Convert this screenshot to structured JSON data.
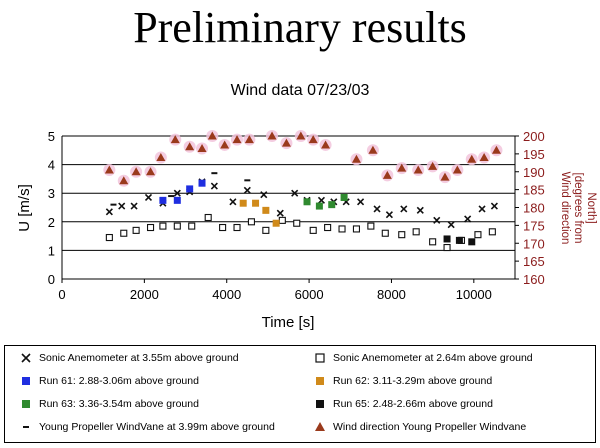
{
  "slide": {
    "title": "Preliminary results"
  },
  "colors": {
    "sonic_355": "#111111",
    "sonic_264": "#111111",
    "run61": "#1f2ee0",
    "run62": "#d08a1a",
    "run63": "#2f8a2f",
    "run65": "#111111",
    "propeller_speed": "#111111",
    "wind_direction": "#9a3a1c",
    "wind_direction_halo": "#f2c4dc",
    "right_axis_text": "#8b1c1c",
    "grid": "#000000"
  },
  "chart_data": {
    "type": "scatter",
    "title": "Wind data 07/23/03",
    "xlabel": "Time [s]",
    "ylabel": "U [m/s]",
    "y2label": "Wind direction [degrees from North]",
    "y2label_lines": [
      "Wind direction",
      "[degrees from",
      "North]"
    ],
    "xlim": [
      0,
      11000
    ],
    "ylim": [
      0,
      5
    ],
    "y2lim": [
      160,
      200
    ],
    "xticks": [
      "0",
      "2000",
      "4000",
      "6000",
      "8000",
      "10000"
    ],
    "yticks": [
      "0",
      "1",
      "2",
      "3",
      "4",
      "5"
    ],
    "y2ticks": [
      "160",
      "165",
      "170",
      "175",
      "180",
      "185",
      "190",
      "195",
      "200"
    ],
    "grid": "horizontal",
    "legend_position": "bottom",
    "series": [
      {
        "name": "Sonic Anemometer at 3.55m above ground",
        "marker": "x",
        "color": "sonic_355",
        "axis": "left",
        "x": [
          1150,
          1450,
          1750,
          2100,
          2450,
          2800,
          3100,
          3400,
          3700,
          4150,
          4500,
          4900,
          5300,
          5650,
          5950,
          6300,
          6600,
          6900,
          7250,
          7650,
          7950,
          8300,
          8700,
          9100,
          9450,
          9850,
          10200,
          10500
        ],
        "y": [
          2.35,
          2.55,
          2.55,
          2.85,
          2.65,
          3.0,
          3.05,
          3.4,
          3.25,
          2.7,
          3.1,
          2.95,
          2.3,
          3.0,
          2.75,
          2.75,
          2.7,
          2.7,
          2.7,
          2.45,
          2.25,
          2.45,
          2.4,
          2.05,
          1.9,
          2.1,
          2.45,
          2.55
        ]
      },
      {
        "name": "Sonic Anemometer at 2.64m above ground",
        "marker": "open-square",
        "color": "sonic_264",
        "axis": "left",
        "x": [
          1150,
          1500,
          1800,
          2150,
          2450,
          2800,
          3150,
          3550,
          3900,
          4250,
          4600,
          4950,
          5350,
          5700,
          6100,
          6450,
          6800,
          7150,
          7500,
          7850,
          8250,
          8600,
          9000,
          9350,
          9700,
          10100,
          10450
        ],
        "y": [
          1.45,
          1.6,
          1.7,
          1.8,
          1.85,
          1.85,
          1.85,
          2.15,
          1.8,
          1.8,
          2.0,
          1.7,
          2.05,
          1.95,
          1.7,
          1.8,
          1.75,
          1.75,
          1.85,
          1.6,
          1.55,
          1.65,
          1.3,
          1.1,
          1.35,
          1.55,
          1.65
        ]
      },
      {
        "name": "Run 61: 2.88-3.06m above ground",
        "marker": "filled-square",
        "color": "run61",
        "axis": "left",
        "x": [
          2450,
          2800,
          3100,
          3400
        ],
        "y": [
          2.75,
          2.75,
          3.15,
          3.35
        ]
      },
      {
        "name": "Run 62: 3.11-3.29m above ground",
        "marker": "filled-square",
        "color": "run62",
        "axis": "left",
        "x": [
          4400,
          4700,
          4950,
          5200
        ],
        "y": [
          2.65,
          2.65,
          2.4,
          1.95
        ]
      },
      {
        "name": "Run 63: 3.36-3.54m above ground",
        "marker": "filled-square",
        "color": "run63",
        "axis": "left",
        "x": [
          5950,
          6250,
          6550,
          6850
        ],
        "y": [
          2.7,
          2.55,
          2.6,
          2.85
        ]
      },
      {
        "name": "Run 65: 2.48-2.66m above ground",
        "marker": "filled-square",
        "color": "run65",
        "axis": "left",
        "x": [
          9350,
          9650,
          9950
        ],
        "y": [
          1.4,
          1.35,
          1.3
        ]
      },
      {
        "name": "Young Propeller WindVane at 3.99m above ground",
        "marker": "dash",
        "color": "propeller_speed",
        "axis": "left",
        "x": [
          1250,
          2650,
          3700,
          4500
        ],
        "y": [
          2.6,
          2.9,
          3.7,
          3.45
        ]
      },
      {
        "name": "Wind direction Young Propeller Windvane",
        "marker": "triangle",
        "color": "wind_direction",
        "axis": "right",
        "x": [
          1150,
          1500,
          1800,
          2150,
          2400,
          2750,
          3100,
          3400,
          3650,
          3950,
          4250,
          4550,
          5100,
          5450,
          5800,
          6100,
          6400,
          7150,
          7550,
          7900,
          8250,
          8650,
          9000,
          9300,
          9600,
          9950,
          10250,
          10550
        ],
        "y": [
          190.5,
          187.5,
          190,
          190,
          194,
          199,
          197,
          196.5,
          200,
          197.5,
          199,
          199,
          200,
          198,
          200,
          199,
          197.5,
          193.5,
          196,
          189,
          191,
          190.5,
          191.5,
          188.5,
          190.5,
          193.5,
          194,
          196
        ]
      }
    ]
  }
}
